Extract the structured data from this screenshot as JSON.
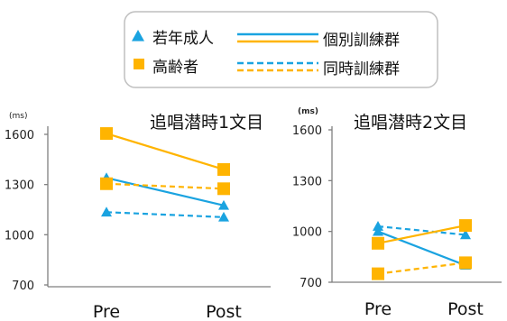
{
  "legend": {
    "groups": [
      {
        "label": "若年成人",
        "marker": "triangle",
        "color": "#1aa3e0"
      },
      {
        "label": "高齢者",
        "marker": "square",
        "color": "#ffb400"
      }
    ],
    "conditions": [
      {
        "label": "個別訓練群",
        "dash": "solid"
      },
      {
        "label": "同時訓練群",
        "dash": "dashed"
      }
    ]
  },
  "colors": {
    "young": "#1aa3e0",
    "old": "#ffb400",
    "axis": "#7f7f7f",
    "legend_border": "#bfbfbf"
  },
  "chart_data": [
    {
      "type": "line",
      "title": "追唱潜時1文目",
      "unit_label": "(ms)",
      "categories": [
        "Pre",
        "Post"
      ],
      "ylim": [
        700,
        1600
      ],
      "yticks": [
        700,
        1000,
        1300,
        1600
      ],
      "series": [
        {
          "group": "young",
          "condition": "solid",
          "marker": "triangle",
          "values": [
            1340,
            1175
          ]
        },
        {
          "group": "young",
          "condition": "dashed",
          "marker": "triangle",
          "values": [
            1135,
            1105
          ]
        },
        {
          "group": "old",
          "condition": "solid",
          "marker": "square",
          "values": [
            1605,
            1390
          ]
        },
        {
          "group": "old",
          "condition": "dashed",
          "marker": "square",
          "values": [
            1305,
            1275
          ]
        }
      ]
    },
    {
      "type": "line",
      "title": "追唱潜時2文目",
      "unit_label": "(ms)",
      "categories": [
        "Pre",
        "Post"
      ],
      "ylim": [
        700,
        1600
      ],
      "yticks": [
        700,
        1000,
        1300,
        1600
      ],
      "series": [
        {
          "group": "young",
          "condition": "solid",
          "marker": "triangle",
          "values": [
            1000,
            800
          ]
        },
        {
          "group": "young",
          "condition": "dashed",
          "marker": "triangle",
          "values": [
            1030,
            980
          ]
        },
        {
          "group": "old",
          "condition": "solid",
          "marker": "square",
          "values": [
            930,
            1035
          ]
        },
        {
          "group": "old",
          "condition": "dashed",
          "marker": "square",
          "values": [
            750,
            815
          ]
        }
      ]
    }
  ]
}
